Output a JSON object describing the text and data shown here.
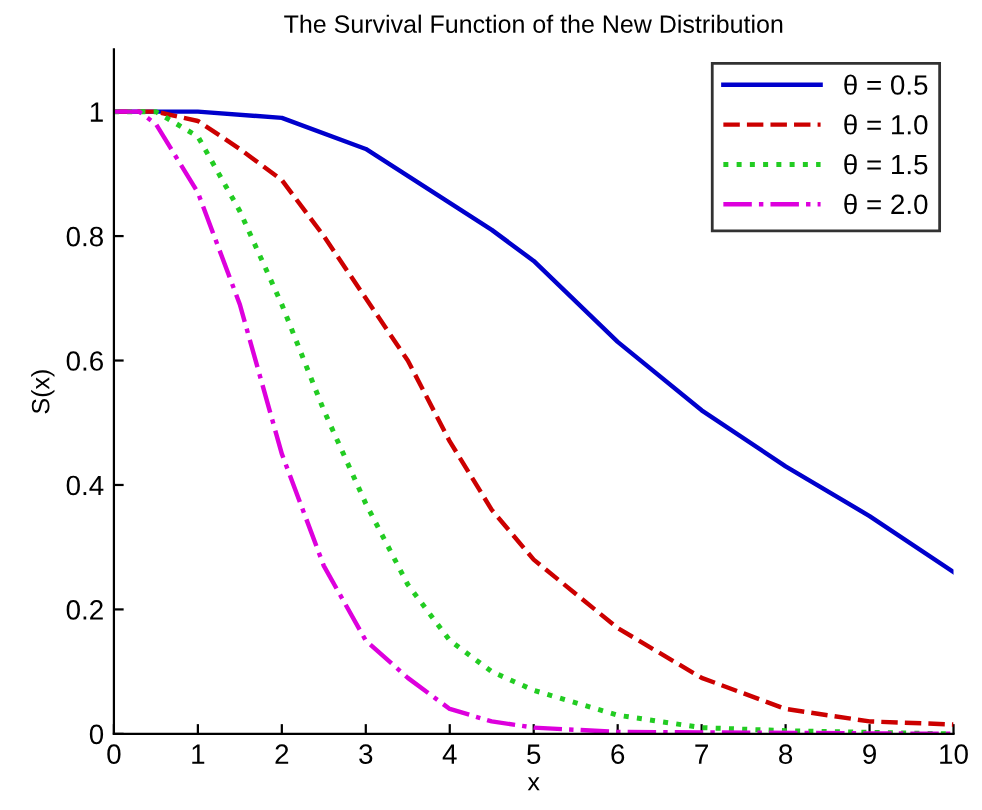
{
  "chart_data": {
    "type": "line",
    "title": "The Survival Function of the New Distribution",
    "xlabel": "x",
    "ylabel": "S(x)",
    "xlim": [
      0,
      10
    ],
    "ylim": [
      0,
      1.1
    ],
    "xticks": [
      0,
      1,
      2,
      3,
      4,
      5,
      6,
      7,
      8,
      9,
      10
    ],
    "yticks": [
      0,
      0.2,
      0.4,
      0.6,
      0.8,
      1
    ],
    "grid": false,
    "legend": "top right",
    "series": [
      {
        "name": "θ = 0.5",
        "color": "#0000cc",
        "line_style": "solid",
        "x": [
          0,
          1,
          2,
          3,
          4.5,
          5,
          6,
          7,
          8,
          9,
          10
        ],
        "values": [
          1,
          1,
          0.99,
          0.94,
          0.81,
          0.76,
          0.63,
          0.52,
          0.43,
          0.35,
          0.26
        ]
      },
      {
        "name": "θ = 1.0",
        "color": "#cc0000",
        "line_style": "dashed",
        "x": [
          0,
          0.5,
          1,
          1.5,
          2,
          2.5,
          3,
          3.5,
          4,
          4.5,
          5,
          6,
          7,
          8,
          9,
          10
        ],
        "values": [
          1,
          1,
          0.985,
          0.94,
          0.89,
          0.8,
          0.7,
          0.6,
          0.47,
          0.36,
          0.28,
          0.17,
          0.09,
          0.04,
          0.02,
          0.015
        ]
      },
      {
        "name": "θ = 1.5",
        "color": "#22cc22",
        "line_style": "dotted",
        "x": [
          0,
          0.5,
          1,
          1.5,
          2,
          2.5,
          3,
          3.5,
          4,
          4.5,
          5,
          6,
          7,
          8,
          10
        ],
        "values": [
          1,
          1,
          0.96,
          0.84,
          0.69,
          0.52,
          0.37,
          0.24,
          0.15,
          0.1,
          0.07,
          0.03,
          0.01,
          0.005,
          0
        ]
      },
      {
        "name": "θ = 2.0",
        "color": "#dd00dd",
        "line_style": "dashdot",
        "x": [
          0,
          0.3,
          0.5,
          1,
          1.5,
          2,
          2.5,
          3,
          3.5,
          4,
          4.5,
          5,
          6,
          10
        ],
        "values": [
          1,
          1,
          0.98,
          0.87,
          0.69,
          0.45,
          0.27,
          0.15,
          0.09,
          0.04,
          0.02,
          0.01,
          0.003,
          0
        ]
      }
    ]
  }
}
